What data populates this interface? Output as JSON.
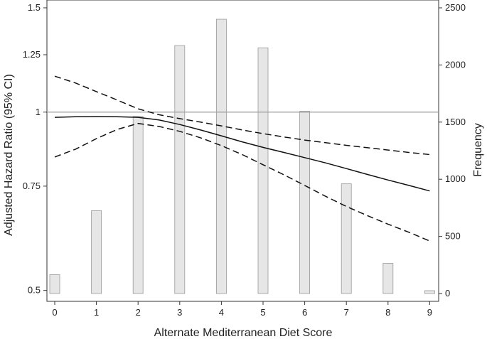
{
  "chart_data": {
    "type": "bar+line",
    "xlabel": "Alternate Mediterranean Diet Score",
    "ylabel_left": "Adjusted Hazard Ratio (95% CI)",
    "ylabel_right": "Frequency",
    "x_ticks": [
      0,
      1,
      2,
      3,
      4,
      5,
      6,
      7,
      8,
      9
    ],
    "left_axis": {
      "scale": "log",
      "ticks": [
        0.5,
        0.75,
        1,
        1.25,
        1.5
      ],
      "tick_labels": [
        "0.5",
        "0.75",
        "1",
        "1.25",
        "1.5"
      ],
      "range": [
        0.49,
        1.5
      ]
    },
    "right_axis": {
      "scale": "linear",
      "ticks": [
        0,
        500,
        1000,
        1500,
        2000,
        2500
      ],
      "tick_labels": [
        "0",
        "500",
        "1000",
        "1500",
        "2000",
        "2500"
      ],
      "range": [
        -20,
        2500
      ]
    },
    "reference_line": 1,
    "bars": {
      "name": "Frequency",
      "x": [
        0,
        1,
        2,
        3,
        4,
        5,
        6,
        7,
        8,
        9
      ],
      "values": [
        165,
        725,
        1550,
        2170,
        2400,
        2150,
        1595,
        960,
        265,
        25
      ]
    },
    "series": [
      {
        "role": "estimate",
        "style": "solid",
        "x": [
          0,
          0.5,
          1,
          1.5,
          2,
          2.5,
          3,
          3.5,
          4,
          4.5,
          5,
          5.5,
          6,
          6.5,
          7,
          7.5,
          8,
          8.5,
          9
        ],
        "y": [
          0.98,
          0.982,
          0.983,
          0.982,
          0.98,
          0.97,
          0.953,
          0.933,
          0.912,
          0.891,
          0.872,
          0.855,
          0.838,
          0.821,
          0.803,
          0.785,
          0.768,
          0.752,
          0.736
        ]
      },
      {
        "role": "upper_ci",
        "style": "dashed",
        "x": [
          0,
          0.5,
          1,
          1.5,
          2,
          2.5,
          3,
          3.5,
          4,
          4.5,
          5,
          5.5,
          6,
          6.5,
          7,
          7.5,
          8,
          8.5,
          9
        ],
        "y": [
          1.15,
          1.12,
          1.083,
          1.048,
          1.013,
          0.99,
          0.975,
          0.962,
          0.948,
          0.933,
          0.92,
          0.908,
          0.897,
          0.888,
          0.879,
          0.871,
          0.863,
          0.855,
          0.848
        ]
      },
      {
        "role": "lower_ci",
        "style": "dashed",
        "x": [
          0,
          0.5,
          1,
          1.5,
          2,
          2.5,
          3,
          3.5,
          4,
          4.5,
          5,
          5.5,
          6,
          6.5,
          7,
          7.5,
          8,
          8.5,
          9
        ],
        "y": [
          0.84,
          0.866,
          0.902,
          0.935,
          0.957,
          0.946,
          0.928,
          0.905,
          0.878,
          0.848,
          0.815,
          0.784,
          0.752,
          0.721,
          0.693,
          0.669,
          0.647,
          0.627,
          0.606
        ]
      }
    ],
    "colors": {
      "bar_fill": "#e6e6e6",
      "bar_stroke": "#9a9a9a",
      "line": "#111111",
      "reference": "#9a9a9a",
      "axis": "#333333"
    }
  }
}
